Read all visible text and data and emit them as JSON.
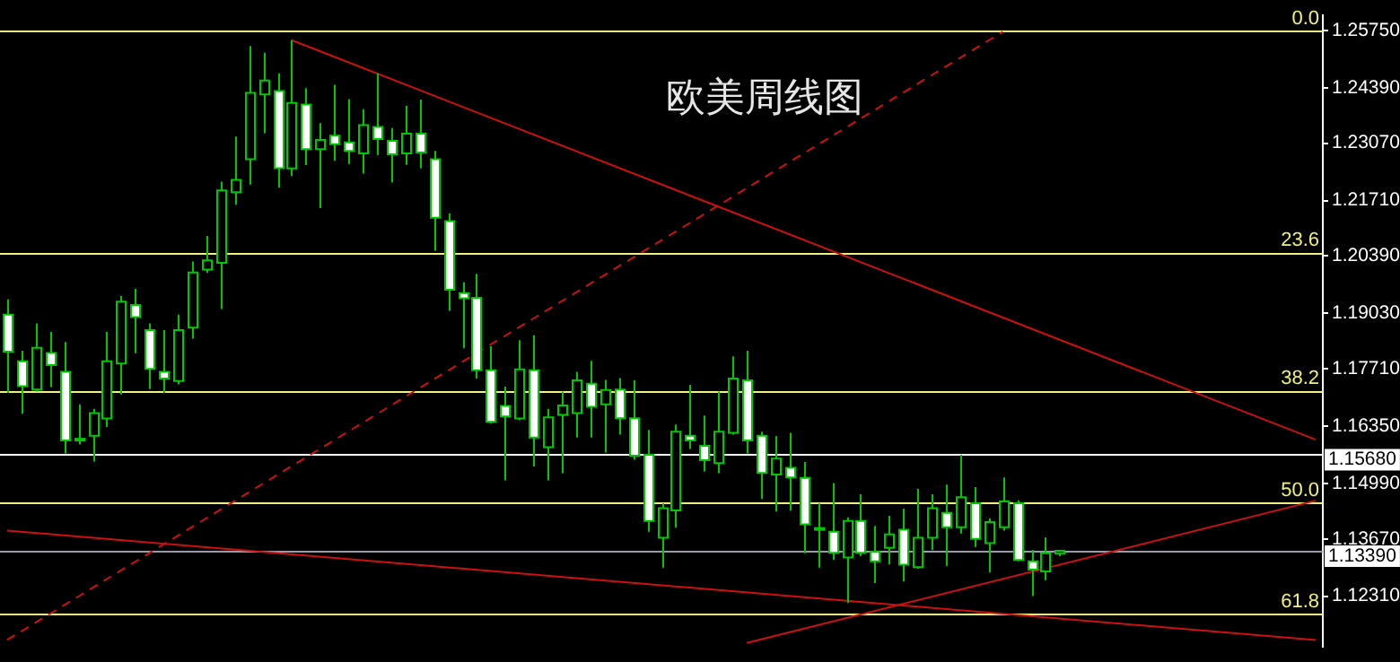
{
  "chart_data": {
    "type": "candlestick",
    "title": "欧美周线图",
    "color": "#00c800",
    "colors": [
      "#ffffff",
      "#ffffff",
      "#000000",
      "#ffffff",
      "#ffffff",
      "#000000",
      "#000000",
      "#000000",
      "#000000",
      "#ffffff",
      "#ffffff",
      "#ffffff",
      "#000000",
      "#000000",
      "#000000",
      "#000000",
      "#000000",
      "#000000",
      "#000000",
      "#ffffff",
      "#000000",
      "#ffffff",
      "#000000",
      "#ffffff",
      "#ffffff",
      "#000000",
      "#ffffff",
      "#ffffff",
      "#000000",
      "#ffffff",
      "#ffffff",
      "#ffffff",
      "#ffffff",
      "#ffffff",
      "#ffffff",
      "#ffffff",
      "#000000",
      "#ffffff",
      "#000000",
      "#000000",
      "#000000",
      "#ffffff",
      "#000000",
      "#ffffff",
      "#ffffff",
      "#ffffff",
      "#000000",
      "#000000",
      "#ffffff",
      "#ffffff",
      "#000000",
      "#000000",
      "#ffffff",
      "#ffffff",
      "#000000",
      "#ffffff",
      "#ffffff",
      "#000000",
      "#ffffff",
      "#000000",
      "#ffffff",
      "#ffffff",
      "#000000",
      "#ffffff",
      "#000000",
      "#000000",
      "#ffffff",
      "#000000",
      "#ffffff",
      "#000000",
      "#000000",
      "#ffffff",
      "#ffffff",
      "#000000",
      "#000000",
      null,
      null,
      null,
      null,
      null,
      null,
      null,
      null,
      null,
      null,
      null,
      null,
      null,
      null,
      null,
      null,
      null,
      null
    ],
    "categories": [
      null,
      null,
      null,
      null,
      null,
      null,
      null,
      null,
      null,
      null,
      null,
      null,
      null,
      null,
      null,
      null,
      null,
      null,
      null,
      null,
      null,
      null,
      null,
      null,
      null,
      null,
      null,
      null,
      null,
      null,
      null,
      null,
      null,
      null,
      null,
      null,
      null,
      null,
      null,
      null,
      null,
      null,
      null,
      null,
      null,
      null,
      null,
      null,
      null,
      null,
      null,
      null,
      null,
      null,
      null,
      null,
      null,
      null,
      null,
      null,
      null,
      null,
      null,
      null,
      null,
      null,
      null,
      null,
      null,
      null,
      null,
      null,
      null,
      null,
      null,
      null,
      null,
      null,
      null,
      null,
      null,
      null,
      null,
      null,
      null,
      null,
      null,
      null,
      null,
      null,
      null,
      null,
      null
    ],
    "ohlc": [
      [
        1.19,
        1.1936,
        1.1714,
        1.1812
      ],
      [
        1.1789,
        1.1814,
        1.1665,
        1.173
      ],
      [
        1.1722,
        1.1879,
        1.1717,
        1.1821
      ],
      [
        1.1809,
        1.1859,
        1.1728,
        1.178
      ],
      [
        1.1764,
        1.1835,
        1.157,
        1.1601
      ],
      [
        1.1601,
        1.1687,
        1.1592,
        1.1605
      ],
      [
        1.1612,
        1.1676,
        1.1551,
        1.1666
      ],
      [
        1.1653,
        1.1859,
        1.1633,
        1.1789
      ],
      [
        1.1784,
        1.1944,
        1.171,
        1.1931
      ],
      [
        1.1923,
        1.1961,
        1.1808,
        1.1894
      ],
      [
        1.1863,
        1.1879,
        1.1723,
        1.1771
      ],
      [
        1.1764,
        1.1863,
        1.1714,
        1.1748
      ],
      [
        1.1742,
        1.19,
        1.1734,
        1.1863
      ],
      [
        1.1869,
        1.2026,
        1.1843,
        1.2
      ],
      [
        1.2007,
        1.2087,
        1.1999,
        1.2029
      ],
      [
        1.2023,
        1.2216,
        1.1913,
        1.2195
      ],
      [
        1.2191,
        1.2323,
        1.2161,
        1.222
      ],
      [
        1.2269,
        1.2538,
        1.2209,
        1.2427
      ],
      [
        1.2423,
        1.2522,
        1.2331,
        1.2456
      ],
      [
        1.2431,
        1.2473,
        1.2202,
        1.2248
      ],
      [
        1.2247,
        1.2552,
        1.2229,
        1.2403
      ],
      [
        1.2399,
        1.2438,
        1.2255,
        1.2293
      ],
      [
        1.2293,
        1.2355,
        1.2153,
        1.2315
      ],
      [
        1.2325,
        1.2446,
        1.2266,
        1.2305
      ],
      [
        1.2309,
        1.2412,
        1.2258,
        1.2289
      ],
      [
        1.2283,
        1.2388,
        1.2235,
        1.235
      ],
      [
        1.2346,
        1.2473,
        1.2279,
        1.2317
      ],
      [
        1.2313,
        1.2343,
        1.2214,
        1.2281
      ],
      [
        1.2283,
        1.2396,
        1.2256,
        1.233
      ],
      [
        1.233,
        1.2411,
        1.2248,
        1.2285
      ],
      [
        1.2269,
        1.2289,
        1.2052,
        1.213
      ],
      [
        1.2122,
        1.214,
        1.1909,
        1.1959
      ],
      [
        1.1951,
        1.1977,
        1.182,
        1.1939
      ],
      [
        1.194,
        1.1997,
        1.1748,
        1.1768
      ],
      [
        1.1768,
        1.1825,
        1.1641,
        1.1645
      ],
      [
        1.1683,
        1.1729,
        1.1506,
        1.1658
      ],
      [
        1.1653,
        1.1839,
        1.1649,
        1.177
      ],
      [
        1.1768,
        1.1851,
        1.1539,
        1.1608
      ],
      [
        1.1585,
        1.1676,
        1.1506,
        1.1656
      ],
      [
        1.1662,
        1.1717,
        1.1523,
        1.1684
      ],
      [
        1.1666,
        1.1764,
        1.1608,
        1.1744
      ],
      [
        1.1736,
        1.179,
        1.1608,
        1.1681
      ],
      [
        1.1687,
        1.1745,
        1.1572,
        1.1721
      ],
      [
        1.1722,
        1.1749,
        1.1615,
        1.1654
      ],
      [
        1.1654,
        1.1744,
        1.1555,
        1.1565
      ],
      [
        1.1567,
        1.1626,
        1.1384,
        1.141
      ],
      [
        1.137,
        1.1452,
        1.1299,
        1.144
      ],
      [
        1.1435,
        1.1639,
        1.1394,
        1.1622
      ],
      [
        1.1612,
        1.1733,
        1.1581,
        1.1601
      ],
      [
        1.1588,
        1.166,
        1.1527,
        1.1554
      ],
      [
        1.1547,
        1.1717,
        1.1523,
        1.1622
      ],
      [
        1.1619,
        1.1801,
        1.1615,
        1.1748
      ],
      [
        1.1744,
        1.1814,
        1.157,
        1.1601
      ],
      [
        1.1612,
        1.1622,
        1.1462,
        1.1524
      ],
      [
        1.152,
        1.1611,
        1.1432,
        1.1558
      ],
      [
        1.1536,
        1.1619,
        1.1435,
        1.1513
      ],
      [
        1.1512,
        1.155,
        1.1333,
        1.1402
      ],
      [
        1.139,
        1.1452,
        1.1299,
        1.1393
      ],
      [
        1.1384,
        1.15,
        1.1317,
        1.1334
      ],
      [
        1.1323,
        1.1418,
        1.1215,
        1.141
      ],
      [
        1.141,
        1.1473,
        1.1326,
        1.1334
      ],
      [
        1.1336,
        1.1398,
        1.1262,
        1.1314
      ],
      [
        1.1346,
        1.1422,
        1.1307,
        1.1378
      ],
      [
        1.1389,
        1.1439,
        1.1266,
        1.1306
      ],
      [
        1.13,
        1.1486,
        1.1296,
        1.137
      ],
      [
        1.137,
        1.1473,
        1.1341,
        1.144
      ],
      [
        1.1429,
        1.1496,
        1.1303,
        1.1395
      ],
      [
        1.1395,
        1.1567,
        1.138,
        1.1466
      ],
      [
        1.1452,
        1.149,
        1.1348,
        1.1367
      ],
      [
        1.1357,
        1.1416,
        1.1287,
        1.1407
      ],
      [
        1.1395,
        1.1513,
        1.1387,
        1.1456
      ],
      [
        1.1452,
        1.1459,
        1.1314,
        1.1317
      ],
      [
        1.1314,
        1.1341,
        1.1231,
        1.1294
      ],
      [
        1.129,
        1.1371,
        1.1269,
        1.1333
      ],
      [
        1.1332,
        1.134,
        1.1326,
        1.1339
      ],
      null,
      null,
      null,
      null,
      null,
      null,
      null,
      null,
      null,
      null,
      null,
      null,
      null,
      null,
      null,
      null,
      null,
      null
    ],
    "series": [
      {
        "type": "line",
        "color": "#cc1111",
        "values": [
          null,
          null,
          null,
          null,
          null,
          null,
          null,
          null,
          null,
          null,
          null,
          null,
          null,
          null,
          null,
          null,
          null,
          null,
          null,
          null,
          1.2552,
          null,
          null,
          null,
          null,
          null,
          null,
          null,
          null,
          null,
          null,
          null,
          null,
          null,
          null,
          null,
          null,
          null,
          null,
          null,
          null,
          null,
          null,
          null,
          null,
          null,
          null,
          null,
          null,
          null,
          null,
          null,
          null,
          null,
          null,
          null,
          null,
          null,
          null,
          null,
          null,
          null,
          null,
          null,
          null,
          null,
          null,
          null,
          null,
          null,
          null,
          null,
          null,
          null,
          null,
          null,
          null,
          null,
          null,
          null,
          null,
          null,
          null,
          null,
          null,
          null,
          null,
          null,
          null,
          null,
          null,
          null,
          1.1603
        ]
      },
      {
        "type": "line",
        "color": "#cc1111",
        "line_style": "dashed",
        "values": [
          1.1127,
          null,
          null,
          null,
          null,
          null,
          null,
          null,
          null,
          null,
          null,
          null,
          null,
          null,
          null,
          null,
          null,
          null,
          null,
          null,
          null,
          null,
          null,
          null,
          null,
          null,
          null,
          null,
          null,
          null,
          null,
          null,
          null,
          null,
          null,
          null,
          null,
          null,
          null,
          null,
          null,
          null,
          null,
          null,
          null,
          null,
          null,
          null,
          null,
          null,
          null,
          null,
          null,
          null,
          null,
          null,
          null,
          null,
          null,
          null,
          null,
          null,
          null,
          null,
          null,
          null,
          null,
          null,
          null,
          null,
          1.2572,
          null,
          null,
          null,
          null,
          null,
          null,
          null,
          null,
          null,
          null,
          null,
          null,
          null,
          null,
          null,
          null,
          null,
          null,
          null,
          null,
          null,
          null
        ]
      },
      {
        "type": "line",
        "color": "#cc1111",
        "values": [
          1.1387,
          null,
          null,
          null,
          null,
          null,
          null,
          null,
          null,
          null,
          null,
          null,
          null,
          null,
          null,
          null,
          null,
          null,
          null,
          null,
          null,
          null,
          null,
          null,
          null,
          null,
          null,
          null,
          null,
          null,
          null,
          null,
          null,
          null,
          null,
          null,
          null,
          null,
          null,
          null,
          null,
          null,
          null,
          null,
          null,
          null,
          null,
          null,
          null,
          null,
          null,
          null,
          null,
          null,
          null,
          null,
          null,
          null,
          null,
          null,
          null,
          null,
          null,
          null,
          null,
          null,
          null,
          null,
          null,
          null,
          null,
          null,
          null,
          null,
          null,
          null,
          null,
          null,
          null,
          null,
          null,
          null,
          null,
          null,
          null,
          null,
          null,
          null,
          null,
          null,
          null,
          null,
          1.1127
        ]
      },
      {
        "type": "line",
        "color": "#cc1111",
        "values": [
          null,
          null,
          null,
          null,
          null,
          null,
          null,
          null,
          null,
          null,
          null,
          null,
          null,
          null,
          null,
          null,
          null,
          null,
          null,
          null,
          null,
          null,
          null,
          null,
          null,
          null,
          null,
          null,
          null,
          null,
          null,
          null,
          null,
          null,
          null,
          null,
          null,
          null,
          null,
          null,
          null,
          null,
          null,
          null,
          null,
          null,
          null,
          null,
          null,
          null,
          null,
          null,
          1.112,
          null,
          null,
          null,
          null,
          null,
          null,
          null,
          null,
          null,
          null,
          null,
          null,
          null,
          null,
          null,
          null,
          null,
          null,
          null,
          null,
          null,
          null,
          null,
          null,
          null,
          null,
          null,
          null,
          null,
          null,
          null,
          null,
          null,
          null,
          null,
          null,
          null,
          null,
          null,
          1.1458
        ]
      }
    ],
    "ylim": [
      1.111,
      1.2612
    ],
    "yticks": [
      {
        "value": 1.2575,
        "label": "1.25750"
      },
      {
        "value": 1.2439,
        "label": "1.24390"
      },
      {
        "value": 1.2307,
        "label": "1.23070"
      },
      {
        "value": 1.2171,
        "label": "1.21710"
      },
      {
        "value": 1.2039,
        "label": "1.20390"
      },
      {
        "value": 1.1903,
        "label": "1.19030"
      },
      {
        "value": 1.1771,
        "label": "1.17710"
      },
      {
        "value": 1.1635,
        "label": "1.16350"
      },
      {
        "value": 1.1499,
        "label": "1.14990"
      },
      {
        "value": 1.1367,
        "label": "1.13670"
      },
      {
        "value": 1.1231,
        "label": "1.12310"
      }
    ],
    "ref_lines": [
      {
        "axis": "y",
        "value": 1.2575,
        "color": "#f0f080"
      },
      {
        "axis": "y",
        "value": 1.2048,
        "color": "#f0f080"
      },
      {
        "axis": "y",
        "value": 1.172,
        "color": "#f0f080"
      },
      {
        "axis": "y",
        "value": 1.1454,
        "color": "#f0f080"
      },
      {
        "axis": "y",
        "value": 1.119,
        "color": "#f0f080"
      },
      {
        "axis": "y",
        "value": 1.1568,
        "label": "1.15680",
        "color": "#ffffff"
      },
      {
        "axis": "y",
        "value": 1.1339,
        "label": "1.13390",
        "color": "#9a9aaa"
      }
    ],
    "annotations": [
      {
        "text": "0.0",
        "y": 1.2575
      },
      {
        "text": "23.6",
        "y": 1.2048
      },
      {
        "text": "38.2",
        "y": 1.172
      },
      {
        "text": "50.0",
        "y": 1.1454
      },
      {
        "text": "61.8",
        "y": 1.119
      }
    ],
    "tick_labels": "y",
    "grid": false,
    "legend": false
  }
}
